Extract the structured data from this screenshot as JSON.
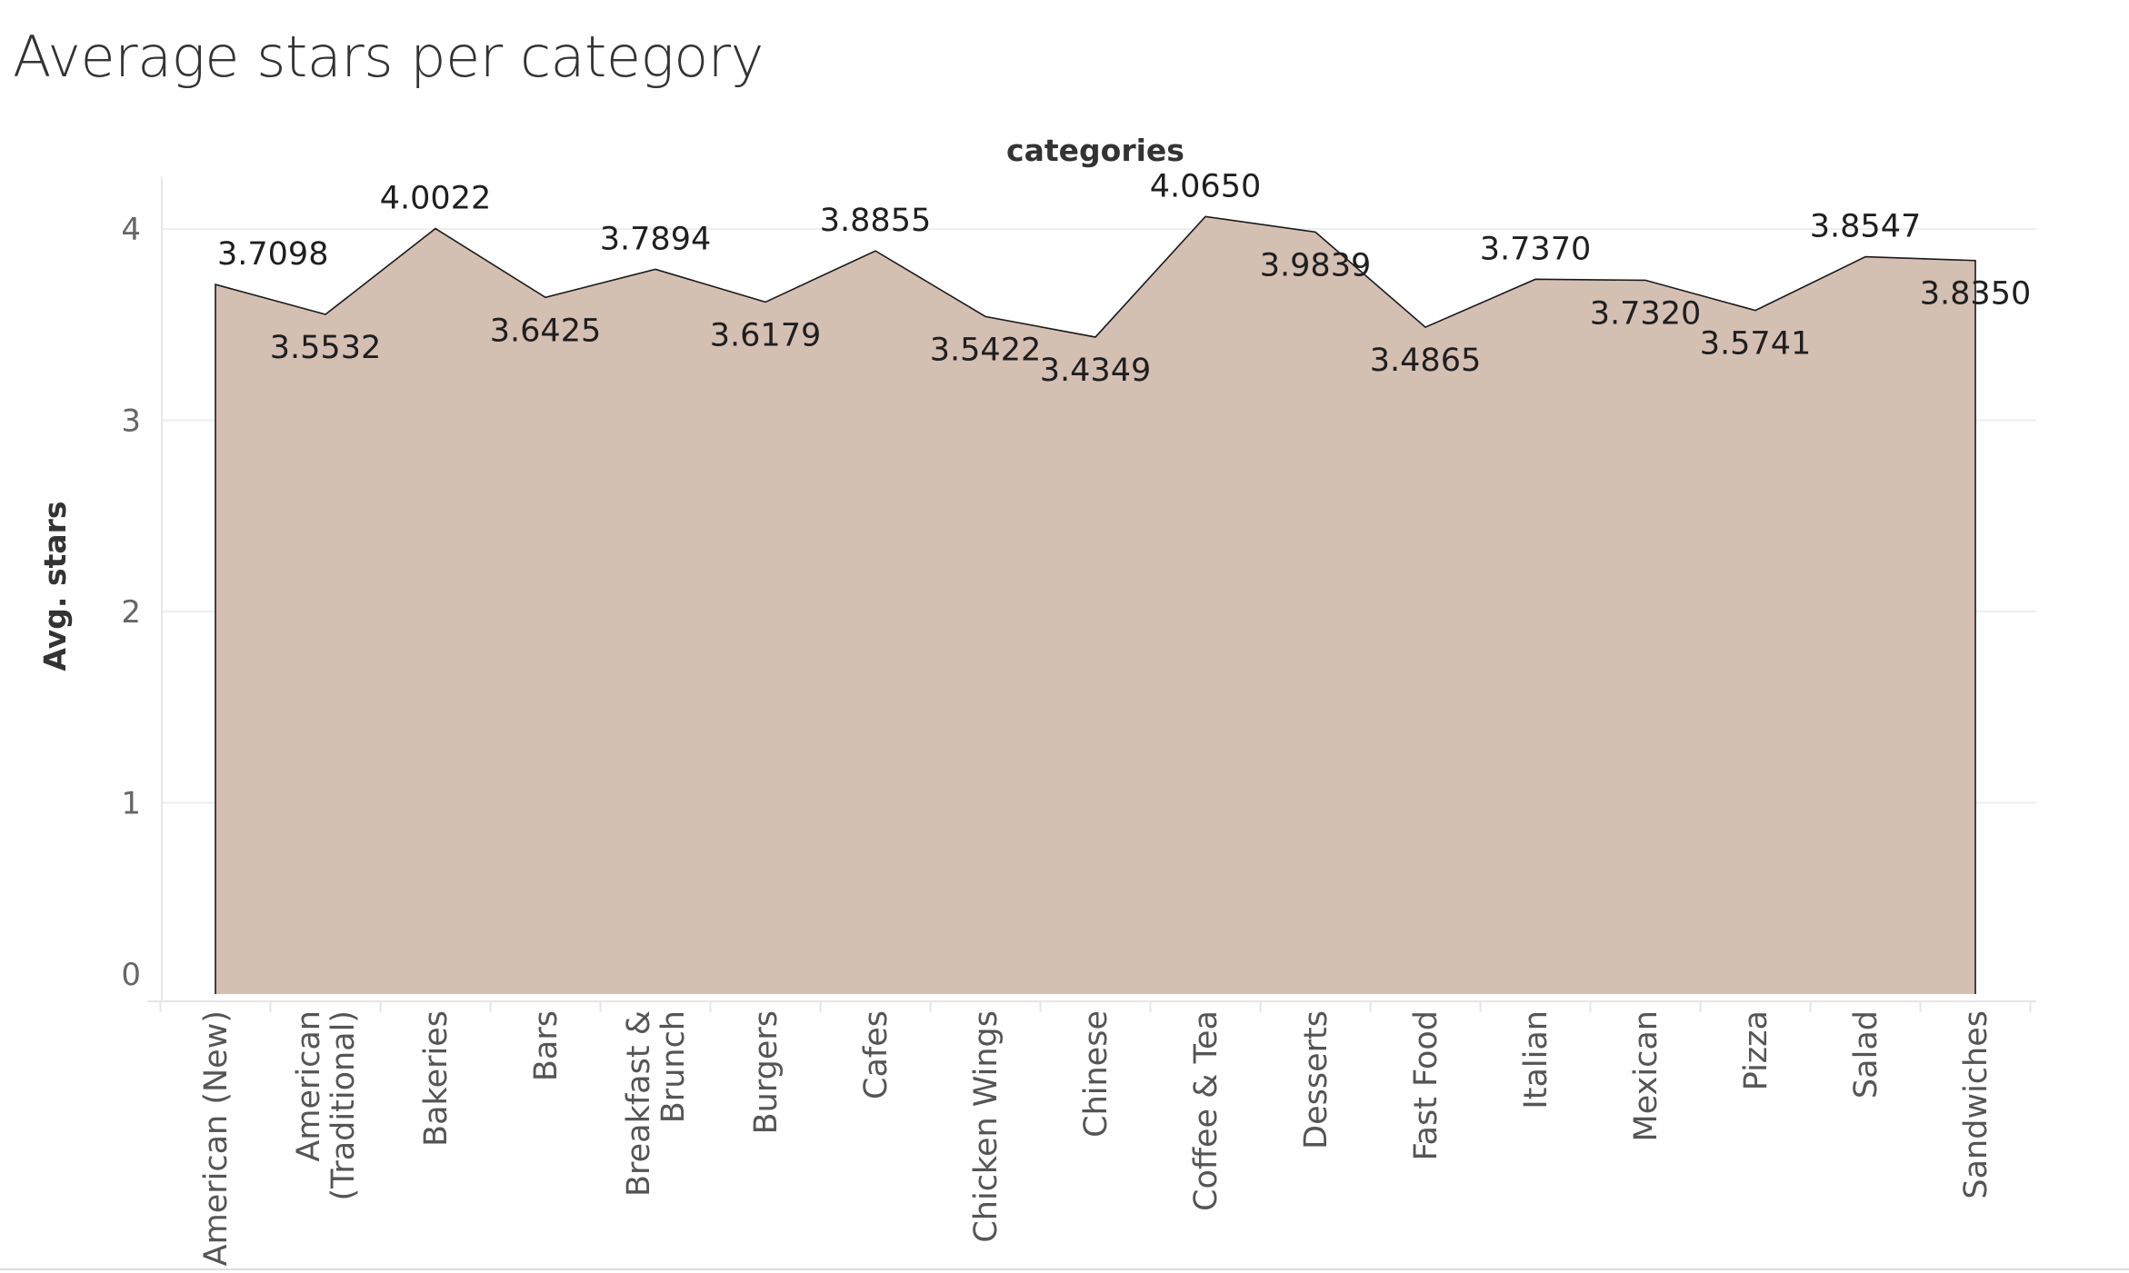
{
  "title": "Average stars per category",
  "chart_data": {
    "type": "area",
    "title": "Average stars per category",
    "header": "categories",
    "xlabel": "",
    "ylabel": "Avg. stars",
    "ylim": [
      0,
      4.3
    ],
    "yticks": [
      0,
      1,
      2,
      3,
      4
    ],
    "grid": true,
    "categories": [
      [
        "American (New)"
      ],
      [
        "American",
        "(Traditional)"
      ],
      [
        "Bakeries"
      ],
      [
        "Bars"
      ],
      [
        "Breakfast &",
        "Brunch"
      ],
      [
        "Burgers"
      ],
      [
        "Cafes"
      ],
      [
        "Chicken Wings"
      ],
      [
        "Chinese"
      ],
      [
        "Coffee & Tea"
      ],
      [
        "Desserts"
      ],
      [
        "Fast Food"
      ],
      [
        "Italian"
      ],
      [
        "Mexican"
      ],
      [
        "Pizza"
      ],
      [
        "Salad"
      ],
      [
        "Sandwiches"
      ]
    ],
    "values": [
      3.7098,
      3.5532,
      4.0022,
      3.6425,
      3.7894,
      3.6179,
      3.8855,
      3.5422,
      3.4349,
      4.065,
      3.9839,
      3.4865,
      3.737,
      3.732,
      3.5741,
      3.8547,
      3.835
    ],
    "data_labels": [
      "3.7098",
      "3.5532",
      "4.0022",
      "3.6425",
      "3.7894",
      "3.6179",
      "3.8855",
      "3.5422",
      "3.4349",
      "4.0650",
      "3.9839",
      "3.4865",
      "3.7370",
      "3.7320",
      "3.5741",
      "3.8547",
      "3.8350"
    ],
    "fill_color": "#d4bfb3",
    "line_color": "#1a1a1a"
  }
}
